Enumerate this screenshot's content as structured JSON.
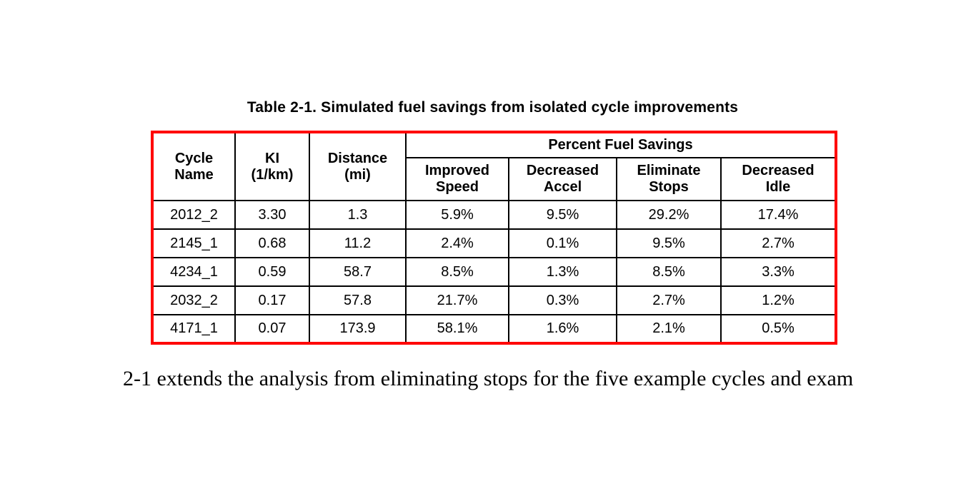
{
  "page": {
    "background_color": "#ffffff",
    "text_color": "#000000"
  },
  "table": {
    "title": "Table 2-1. Simulated fuel savings from isolated cycle improvements",
    "border_color": "#ff0000",
    "grid_color": "#000000",
    "group_header": "Percent Fuel Savings",
    "columns": [
      {
        "label": "Cycle\nName"
      },
      {
        "label": "KI\n(1/km)"
      },
      {
        "label": "Distance\n(mi)"
      },
      {
        "label": "Improved\nSpeed"
      },
      {
        "label": "Decreased\nAccel"
      },
      {
        "label": "Eliminate\nStops"
      },
      {
        "label": "Decreased\nIdle"
      }
    ],
    "rows": [
      [
        "2012_2",
        "3.30",
        "1.3",
        "5.9%",
        "9.5%",
        "29.2%",
        "17.4%"
      ],
      [
        "2145_1",
        "0.68",
        "11.2",
        "2.4%",
        "0.1%",
        "9.5%",
        "2.7%"
      ],
      [
        "4234_1",
        "0.59",
        "58.7",
        "8.5%",
        "1.3%",
        "8.5%",
        "3.3%"
      ],
      [
        "2032_2",
        "0.17",
        "57.8",
        "21.7%",
        "0.3%",
        "2.7%",
        "1.2%"
      ],
      [
        "4171_1",
        "0.07",
        "173.9",
        "58.1%",
        "1.6%",
        "2.1%",
        "0.5%"
      ]
    ]
  },
  "paragraph": {
    "text": "2-1 extends the analysis from eliminating stops for the five example cycles and exam"
  }
}
